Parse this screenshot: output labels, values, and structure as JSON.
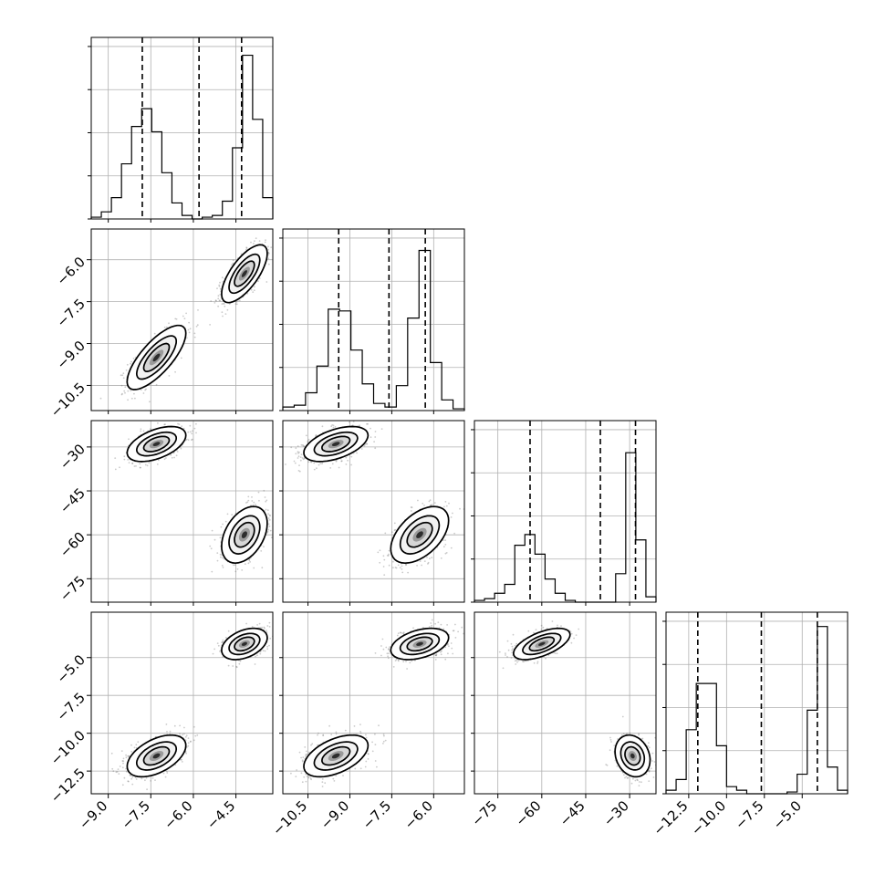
{
  "chart_data": {
    "type": "corner",
    "description_note": "",
    "params": [
      {
        "range": [
          -9.6,
          -3.2
        ],
        "ticks": [
          -9.0,
          -7.5,
          -6.0,
          -4.5
        ],
        "tick_labels": [
          "−9.0",
          "−7.5",
          "−6.0",
          "−4.5"
        ],
        "quantiles": [
          -7.8,
          -5.8,
          -4.3
        ],
        "hist": [
          0.01,
          0.04,
          0.12,
          0.31,
          0.52,
          0.62,
          0.49,
          0.26,
          0.09,
          0.02,
          0.0,
          0.01,
          0.02,
          0.1,
          0.4,
          0.92,
          0.56,
          0.12
        ]
      },
      {
        "range": [
          -11.4,
          -4.9
        ],
        "ticks": [
          -10.5,
          -9.0,
          -7.5,
          -6.0
        ],
        "tick_labels": [
          "−10.5",
          "−9.0",
          "−7.5",
          "−6.0"
        ],
        "quantiles": [
          -9.4,
          -7.6,
          -6.3
        ],
        "hist": [
          0.02,
          0.03,
          0.1,
          0.25,
          0.57,
          0.56,
          0.34,
          0.15,
          0.04,
          0.02,
          0.14,
          0.52,
          0.9,
          0.27,
          0.06,
          0.01
        ]
      },
      {
        "range": [
          -83,
          -21
        ],
        "ticks": [
          -75,
          -60,
          -45,
          -30
        ],
        "tick_labels": [
          "−75",
          "−60",
          "−45",
          "−30"
        ],
        "quantiles": [
          -64,
          -40,
          -28
        ],
        "hist": [
          0.01,
          0.02,
          0.05,
          0.1,
          0.32,
          0.38,
          0.27,
          0.13,
          0.05,
          0.01,
          0.0,
          0.0,
          0.0,
          0.0,
          0.16,
          0.84,
          0.35,
          0.03
        ]
      },
      {
        "range": [
          -14.0,
          -2.0
        ],
        "ticks": [
          -12.5,
          -10.0,
          -7.5,
          -5.0
        ],
        "tick_labels": [
          "−12.5",
          "−10.0",
          "−7.5",
          "−5.0"
        ],
        "quantiles": [
          -11.9,
          -7.7,
          -4.0
        ],
        "hist": [
          0.02,
          0.08,
          0.36,
          0.62,
          0.62,
          0.27,
          0.04,
          0.02,
          0.0,
          0.0,
          0.0,
          0.0,
          0.01,
          0.11,
          0.47,
          0.94,
          0.15,
          0.02
        ]
      }
    ],
    "modes": [
      {
        "center": [
          -7.3,
          -9.5,
          -29,
          -11.5
        ],
        "sd": [
          0.45,
          0.5,
          2.6,
          0.6
        ],
        "corr": [
          [
            1,
            0.75,
            0.5,
            0.5
          ],
          [
            0.75,
            1,
            0.5,
            0.5
          ],
          [
            0.5,
            0.5,
            1,
            -0.2
          ],
          [
            0.5,
            0.5,
            -0.2,
            1
          ]
        ],
        "weight": 0.5
      },
      {
        "center": [
          -4.2,
          -6.5,
          -60,
          -4.1
        ],
        "sd": [
          0.35,
          0.45,
          4.2,
          0.45
        ],
        "corr": [
          [
            1,
            0.7,
            0.4,
            0.4
          ],
          [
            0.7,
            1,
            0.5,
            0.4
          ],
          [
            0.4,
            0.5,
            1,
            0.6
          ],
          [
            0.4,
            0.4,
            0.6,
            1
          ]
        ],
        "weight": 0.5
      }
    ],
    "grid": true,
    "legend": ""
  }
}
